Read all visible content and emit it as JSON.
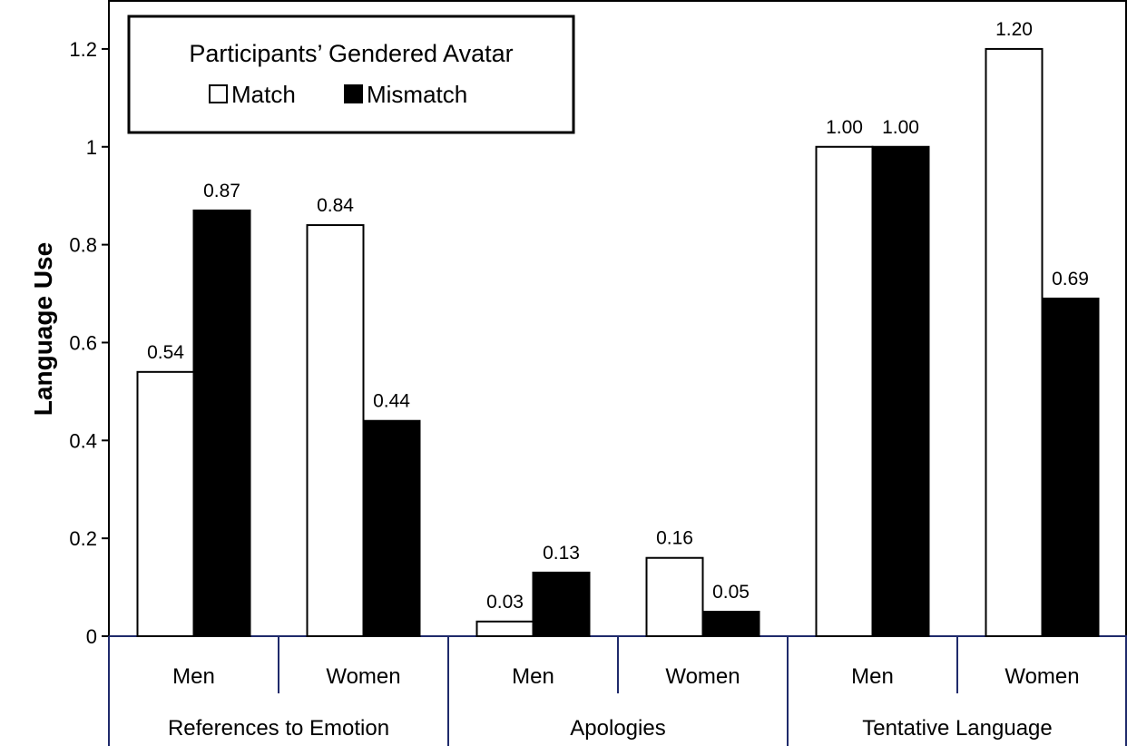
{
  "chart_data": {
    "type": "bar",
    "title": "",
    "xlabel": "",
    "ylabel": "Language Use",
    "ylim": [
      0,
      1.3
    ],
    "yticks": [
      {
        "value": 0,
        "label": "0"
      },
      {
        "value": 0.2,
        "label": "0.2"
      },
      {
        "value": 0.4,
        "label": "0.4"
      },
      {
        "value": 0.6,
        "label": "0.6"
      },
      {
        "value": 0.8,
        "label": "0.8"
      },
      {
        "value": 1.0,
        "label": "1"
      },
      {
        "value": 1.2,
        "label": "1.2"
      }
    ],
    "groups": [
      "References to Emotion",
      "Apologies",
      "Tentative Language"
    ],
    "categories": [
      "Men",
      "Women",
      "Men",
      "Women",
      "Men",
      "Women"
    ],
    "legend": {
      "title": "Participants’ Gendered Avatar",
      "placement": "top-left"
    },
    "series": [
      {
        "name": "Match",
        "color": "#ffffff",
        "values": [
          0.54,
          0.84,
          0.03,
          0.16,
          1.0,
          1.2
        ],
        "labels": [
          "0.54",
          "0.84",
          "0.03",
          "0.16",
          "1.00",
          "1.20"
        ]
      },
      {
        "name": "Mismatch",
        "color": "#000000",
        "values": [
          0.87,
          0.44,
          0.13,
          0.05,
          1.0,
          0.69
        ],
        "labels": [
          "0.87",
          "0.44",
          "0.13",
          "0.05",
          "1.00",
          "0.69"
        ]
      }
    ],
    "grid": false
  }
}
